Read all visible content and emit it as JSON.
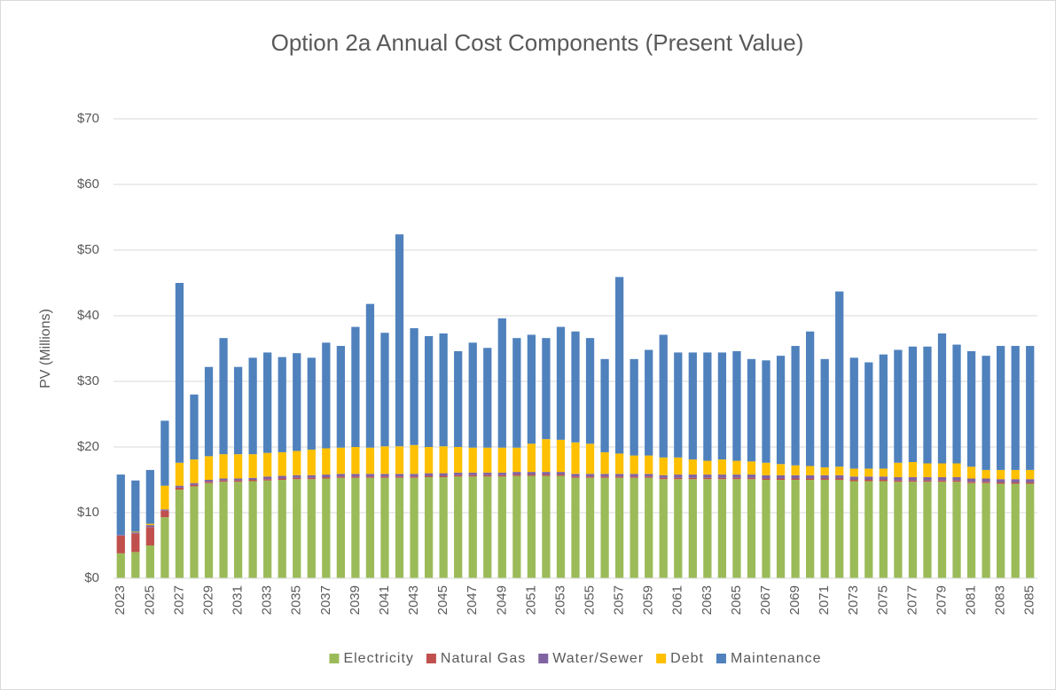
{
  "chart_data": {
    "type": "stacked_bar",
    "title": "Option 2a Annual Cost Components (Present Value)",
    "y_label": "PV (Millions)",
    "categories": [
      "2023",
      null,
      "2025",
      null,
      "2027",
      null,
      "2029",
      null,
      "2031",
      null,
      "2033",
      null,
      "2035",
      null,
      "2037",
      null,
      "2039",
      null,
      "2041",
      null,
      "2043",
      null,
      "2045",
      null,
      "2047",
      null,
      "2049",
      null,
      "2051",
      null,
      "2053",
      null,
      "2055",
      null,
      "2057",
      null,
      "2059",
      null,
      "2061",
      null,
      "2063",
      null,
      "2065",
      null,
      "2067",
      null,
      "2069",
      null,
      "2071",
      null,
      "2073",
      null,
      "2075",
      null,
      "2077",
      null,
      "2079",
      null,
      "2081",
      null,
      "2083",
      null,
      "2085"
    ],
    "series": [
      {
        "name": "Electricity",
        "color": "#9bbb59",
        "values": [
          3.8,
          4.0,
          5.0,
          9.3,
          13.5,
          14.0,
          14.5,
          14.7,
          14.7,
          14.8,
          14.9,
          15.0,
          15.1,
          15.1,
          15.2,
          15.3,
          15.3,
          15.3,
          15.3,
          15.3,
          15.3,
          15.4,
          15.4,
          15.5,
          15.5,
          15.5,
          15.5,
          15.6,
          15.6,
          15.6,
          15.6,
          15.3,
          15.3,
          15.3,
          15.3,
          15.3,
          15.3,
          15.1,
          15.1,
          15.1,
          15.1,
          15.1,
          15.1,
          15.1,
          15.0,
          15.0,
          15.0,
          15.0,
          15.0,
          15.0,
          14.8,
          14.8,
          14.8,
          14.7,
          14.7,
          14.7,
          14.7,
          14.7,
          14.5,
          14.5,
          14.4,
          14.4,
          14.4
        ]
      },
      {
        "name": "Natural Gas",
        "color": "#c0504d",
        "values": [
          2.7,
          2.8,
          2.8,
          1.0,
          0.3,
          0.2,
          0.2,
          0.2,
          0.2,
          0.2,
          0.2,
          0.2,
          0.2,
          0.2,
          0.2,
          0.2,
          0.2,
          0.2,
          0.2,
          0.2,
          0.2,
          0.2,
          0.2,
          0.2,
          0.2,
          0.2,
          0.2,
          0.2,
          0.2,
          0.2,
          0.2,
          0.2,
          0.2,
          0.2,
          0.2,
          0.2,
          0.2,
          0.2,
          0.2,
          0.2,
          0.2,
          0.2,
          0.2,
          0.2,
          0.2,
          0.2,
          0.2,
          0.2,
          0.2,
          0.2,
          0.2,
          0.2,
          0.2,
          0.2,
          0.2,
          0.2,
          0.2,
          0.2,
          0.2,
          0.2,
          0.2,
          0.2,
          0.2
        ]
      },
      {
        "name": "Water/Sewer",
        "color": "#8064a2",
        "values": [
          0.1,
          0.2,
          0.3,
          0.2,
          0.3,
          0.3,
          0.3,
          0.3,
          0.3,
          0.3,
          0.4,
          0.4,
          0.4,
          0.4,
          0.4,
          0.4,
          0.4,
          0.4,
          0.4,
          0.4,
          0.4,
          0.4,
          0.4,
          0.4,
          0.4,
          0.4,
          0.4,
          0.4,
          0.4,
          0.4,
          0.4,
          0.4,
          0.4,
          0.4,
          0.4,
          0.4,
          0.4,
          0.4,
          0.5,
          0.5,
          0.5,
          0.5,
          0.5,
          0.5,
          0.5,
          0.5,
          0.5,
          0.5,
          0.5,
          0.5,
          0.5,
          0.5,
          0.5,
          0.5,
          0.5,
          0.5,
          0.5,
          0.5,
          0.5,
          0.5,
          0.5,
          0.5,
          0.5
        ]
      },
      {
        "name": "Debt",
        "color": "#ffc000",
        "values": [
          0,
          0.1,
          0.2,
          3.6,
          3.5,
          3.6,
          3.6,
          3.7,
          3.7,
          3.6,
          3.6,
          3.6,
          3.7,
          3.9,
          4.0,
          4.0,
          4.1,
          4.0,
          4.2,
          4.2,
          4.4,
          4.0,
          4.1,
          3.9,
          3.8,
          3.8,
          3.8,
          3.7,
          4.3,
          5.0,
          4.9,
          4.8,
          4.6,
          3.3,
          3.1,
          2.8,
          2.8,
          2.7,
          2.6,
          2.3,
          2.1,
          2.3,
          2.1,
          2.0,
          1.9,
          1.7,
          1.5,
          1.4,
          1.2,
          1.3,
          1.2,
          1.2,
          1.2,
          2.2,
          2.3,
          2.1,
          2.1,
          2.1,
          1.8,
          1.3,
          1.4,
          1.4,
          1.4
        ]
      },
      {
        "name": "Maintenance",
        "color": "#4f81bd",
        "values": [
          9.2,
          7.8,
          8.2,
          9.9,
          27.4,
          9.9,
          13.6,
          17.7,
          13.3,
          14.7,
          15.3,
          14.5,
          14.9,
          14.0,
          16.1,
          15.5,
          18.3,
          21.9,
          17.3,
          32.3,
          17.8,
          16.9,
          17.2,
          14.6,
          16.0,
          15.2,
          19.7,
          16.7,
          16.6,
          15.4,
          17.2,
          16.9,
          16.1,
          14.2,
          26.9,
          14.7,
          16.1,
          18.7,
          16.0,
          16.3,
          16.5,
          16.3,
          16.7,
          15.6,
          15.6,
          16.5,
          18.2,
          20.5,
          16.5,
          26.7,
          16.9,
          16.2,
          17.4,
          17.2,
          17.6,
          17.8,
          19.8,
          18.1,
          17.6,
          17.4,
          18.9,
          18.9,
          18.9
        ]
      }
    ],
    "ylim": [
      0,
      70
    ],
    "yticks": [
      {
        "value": 0,
        "label": "$0"
      },
      {
        "value": 10,
        "label": "$10"
      },
      {
        "value": 20,
        "label": "$20"
      },
      {
        "value": 30,
        "label": "$30"
      },
      {
        "value": 40,
        "label": "$40"
      },
      {
        "value": 50,
        "label": "$50"
      },
      {
        "value": 60,
        "label": "$60"
      },
      {
        "value": 70,
        "label": "$70"
      }
    ],
    "grid": true,
    "legend": "bottom"
  }
}
